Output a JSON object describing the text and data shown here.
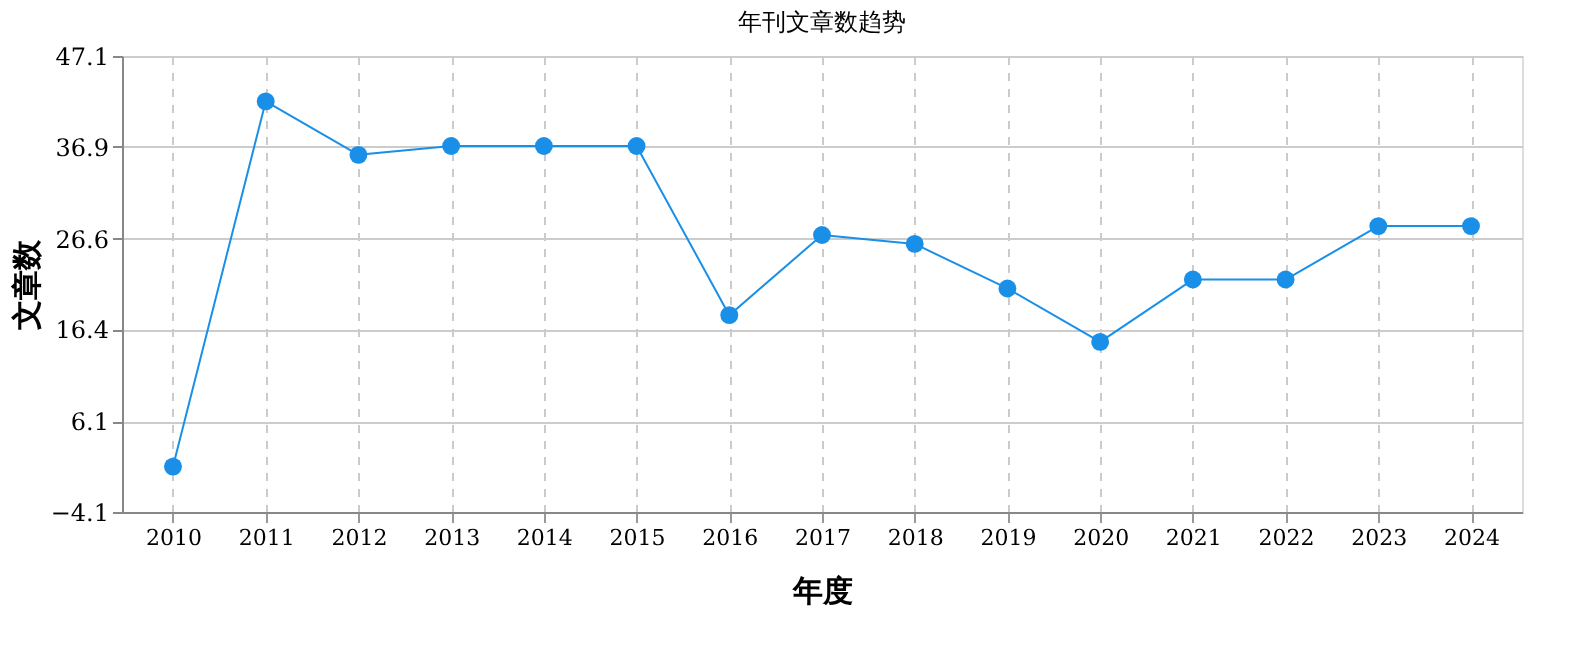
{
  "chart_data": {
    "type": "line",
    "title": "年刊文章数趋势",
    "xlabel": "年度",
    "ylabel": "文章数",
    "categories": [
      "2010",
      "2011",
      "2012",
      "2013",
      "2014",
      "2015",
      "2016",
      "2017",
      "2018",
      "2019",
      "2020",
      "2021",
      "2022",
      "2023",
      "2024"
    ],
    "series": [
      {
        "color": "#1a8fe8",
        "values": [
          1,
          42,
          36,
          37,
          37,
          37,
          18,
          27,
          26,
          21,
          15,
          22,
          22,
          28,
          28
        ]
      }
    ],
    "ylim": [
      -4.1,
      47.1
    ],
    "yticks": [
      -4.1,
      6.1,
      16.4,
      26.6,
      36.9,
      47.1
    ],
    "grid": true,
    "marker": "circle",
    "line_style": "solid",
    "legend": false
  }
}
